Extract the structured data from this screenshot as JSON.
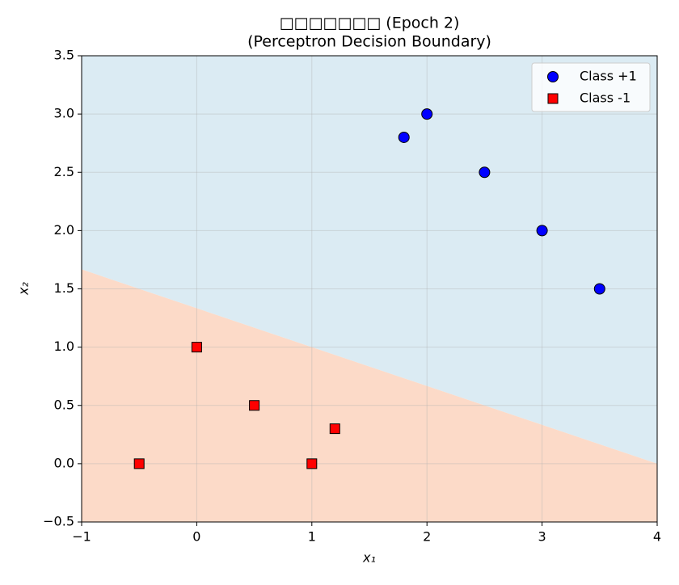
{
  "chart_data": {
    "type": "scatter",
    "title": "□□□□□□□ (Epoch 2)",
    "subtitle": "(Perceptron Decision Boundary)",
    "x_label": "x₁",
    "y_label": "x₂",
    "xlim": [
      -1,
      4
    ],
    "ylim": [
      -0.5,
      3.5
    ],
    "xticks": [
      {
        "value": -1,
        "label": "−1"
      },
      0,
      1,
      2,
      3,
      4
    ],
    "yticks": [
      {
        "value": -0.5,
        "label": "−0.5"
      },
      {
        "value": 0,
        "label": "0.0"
      },
      {
        "value": 0.5,
        "label": "0.5"
      },
      {
        "value": 1,
        "label": "1.0"
      },
      {
        "value": 1.5,
        "label": "1.5"
      },
      {
        "value": 2,
        "label": "2.0"
      },
      {
        "value": 2.5,
        "label": "2.5"
      },
      {
        "value": 3,
        "label": "3.0"
      },
      {
        "value": 3.5,
        "label": "3.5"
      }
    ],
    "grid": true,
    "legend": "upper right",
    "boundary": {
      "x": [
        -1,
        4
      ],
      "y": [
        1.667,
        0
      ],
      "above_color": "#dbebf3",
      "below_color": "#fcdac8"
    },
    "series": [
      {
        "name": "Class +1",
        "color": "#0000ff",
        "marker": "circle",
        "x": [
          1.8,
          2,
          2.5,
          3,
          3.5
        ],
        "values": [
          2.8,
          3,
          2.5,
          2,
          1.5
        ]
      },
      {
        "name": "Class -1",
        "color": "#ff0000",
        "marker": "square",
        "x": [
          0,
          0.5,
          -0.5,
          1,
          1.2
        ],
        "values": [
          1,
          0.5,
          0,
          0,
          0.3
        ]
      }
    ]
  }
}
